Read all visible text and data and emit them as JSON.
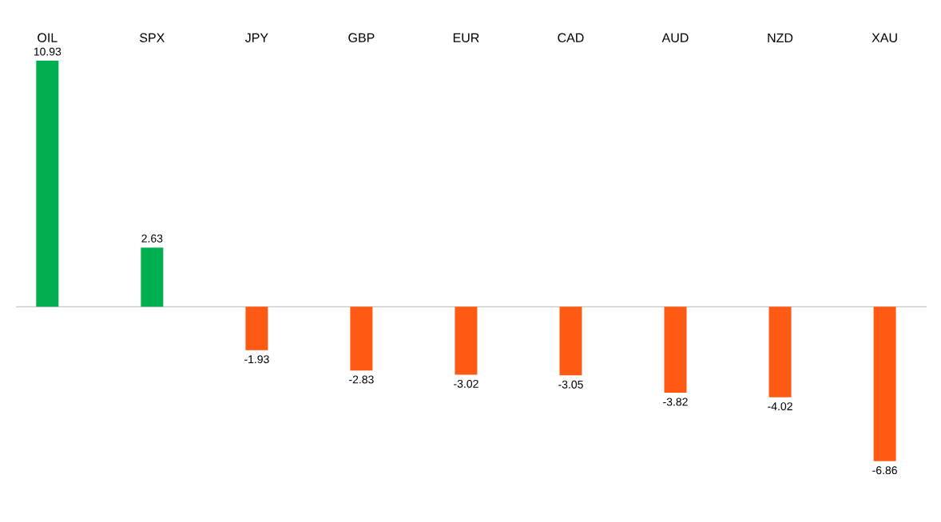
{
  "chart_data": {
    "type": "bar",
    "categories": [
      "OIL",
      "SPX",
      "JPY",
      "GBP",
      "EUR",
      "CAD",
      "AUD",
      "NZD",
      "XAU"
    ],
    "values": [
      10.93,
      2.63,
      -1.93,
      -2.83,
      -3.02,
      -3.05,
      -3.82,
      -4.02,
      -6.86
    ],
    "colors": [
      "#00b050",
      "#00b050",
      "#ff5a14",
      "#ff5a14",
      "#ff5a14",
      "#ff5a14",
      "#ff5a14",
      "#ff5a14",
      "#ff5a14"
    ],
    "data_labels": true
  }
}
